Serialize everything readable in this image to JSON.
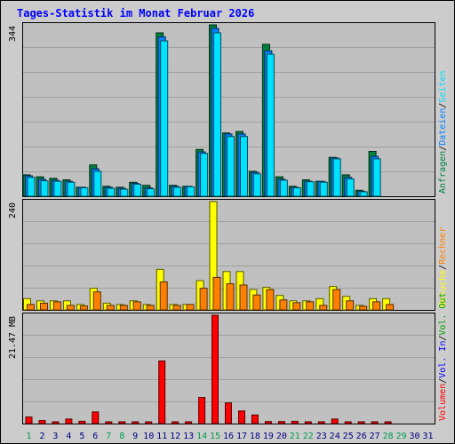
{
  "colors": {
    "frame_bg": "#cccccc",
    "plot_bg": "#c0c0c0",
    "grid": "#a0a0a0",
    "title": "#0000ff",
    "anfragen": "#008040",
    "dateien": "#0080ff",
    "seiten": "#00e0ff",
    "besuche": "#ffff00",
    "rechner": "#ff8000",
    "volumen": "#ff0000",
    "weekday": "#000080",
    "weekend": "#00a050"
  },
  "chart_data": [
    {
      "type": "bar",
      "title": "Tages-Statistik im Monat Februar 2026",
      "days": [
        "1",
        "2",
        "3",
        "4",
        "5",
        "6",
        "7",
        "8",
        "9",
        "10",
        "11",
        "12",
        "13",
        "14",
        "15",
        "16",
        "17",
        "18",
        "19",
        "20",
        "21",
        "22",
        "23",
        "24",
        "25",
        "26",
        "27",
        "28",
        "29",
        "30",
        "31"
      ],
      "weekend_days": [
        "1",
        "7",
        "8",
        "14",
        "15",
        "21",
        "22",
        "28",
        "29"
      ],
      "ylim": [
        0,
        344
      ],
      "ymax_label": "344",
      "legend": [
        {
          "name": "Anfragen",
          "color": "#008040"
        },
        {
          "name": "Dateien",
          "color": "#0080ff"
        },
        {
          "name": "Seiten",
          "color": "#00e0ff"
        }
      ],
      "legend_separator": "/",
      "series": [
        {
          "name": "Anfragen",
          "values": [
            43,
            39,
            36,
            33,
            18,
            63,
            20,
            18,
            28,
            22,
            328,
            22,
            20,
            94,
            344,
            127,
            130,
            50,
            305,
            39,
            20,
            33,
            30,
            78,
            43,
            12,
            90,
            0,
            0,
            0,
            0
          ]
        },
        {
          "name": "Dateien",
          "values": [
            41,
            34,
            32,
            30,
            18,
            55,
            18,
            16,
            26,
            17,
            320,
            20,
            20,
            89,
            337,
            125,
            125,
            48,
            292,
            34,
            18,
            30,
            30,
            77,
            38,
            10,
            80,
            0,
            0,
            0,
            0
          ]
        },
        {
          "name": "Seiten",
          "values": [
            38,
            31,
            30,
            28,
            17,
            50,
            16,
            14,
            24,
            15,
            312,
            18,
            19,
            86,
            328,
            120,
            120,
            45,
            285,
            32,
            17,
            29,
            28,
            75,
            35,
            9,
            75,
            0,
            0,
            0,
            0
          ]
        }
      ]
    },
    {
      "type": "bar",
      "ylim": [
        0,
        240
      ],
      "ymax_label": "240",
      "legend": [
        {
          "name": "Besuche",
          "color": "#ffff00"
        },
        {
          "name": "Rechner",
          "color": "#ff8000"
        }
      ],
      "legend_separator": "/",
      "series": [
        {
          "name": "Besuche",
          "values": [
            25,
            20,
            20,
            20,
            12,
            48,
            15,
            12,
            20,
            12,
            90,
            12,
            12,
            65,
            240,
            85,
            85,
            45,
            50,
            32,
            20,
            20,
            25,
            52,
            30,
            10,
            25,
            25,
            0,
            0,
            0
          ]
        },
        {
          "name": "Rechner",
          "values": [
            12,
            15,
            18,
            10,
            9,
            40,
            10,
            10,
            18,
            10,
            62,
            10,
            12,
            48,
            72,
            58,
            55,
            33,
            45,
            22,
            16,
            18,
            10,
            45,
            20,
            8,
            18,
            12,
            0,
            0,
            0
          ]
        }
      ]
    },
    {
      "type": "bar",
      "ylim": [
        0,
        21.47
      ],
      "ymax_label": "21.47 MB",
      "legend": [
        {
          "name": "Volumen",
          "color": "#ff0000"
        },
        {
          "name": "Vol. In",
          "color": "#0000ff"
        },
        {
          "name": "Vol. Out",
          "color": "#00a000"
        }
      ],
      "legend_separator": "/",
      "series": [
        {
          "name": "Volumen",
          "values": [
            1.3,
            0.6,
            0.25,
            0.9,
            0.45,
            2.3,
            0.2,
            0.2,
            0.2,
            0.2,
            12.4,
            0.2,
            0.2,
            5.2,
            21.47,
            4.1,
            2.5,
            1.7,
            0.4,
            0.4,
            0.45,
            0.25,
            0.25,
            0.9,
            0.2,
            0.2,
            0.2,
            0.2,
            0,
            0,
            0
          ]
        }
      ]
    }
  ]
}
